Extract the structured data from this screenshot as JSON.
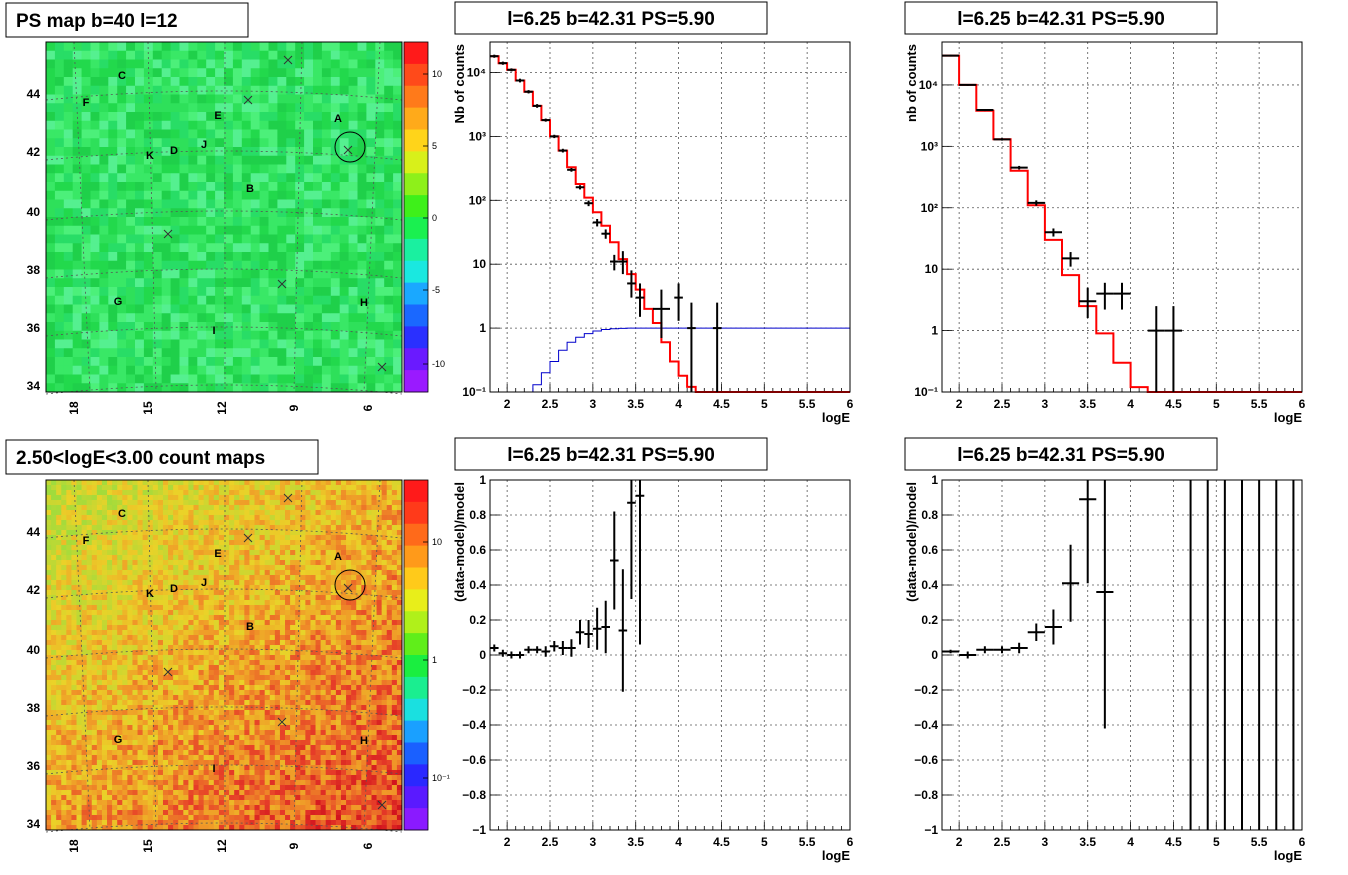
{
  "colors": {
    "model_line": "#ff0000",
    "background_line": "#0000cc",
    "data_marker": "#000000"
  },
  "panels": [
    {
      "id": "ps-map",
      "type": "heatmap",
      "title": "PS map b=40 l=12",
      "x_ticks": [
        "18",
        "15",
        "12",
        "9",
        "6"
      ],
      "y_ticks": [
        "34",
        "36",
        "38",
        "40",
        "42",
        "44"
      ],
      "colorbar_ticks": [
        "10",
        "5",
        "0",
        "-5",
        "-10"
      ],
      "source_labels": [
        "A",
        "B",
        "C",
        "D",
        "E",
        "F",
        "G",
        "H",
        "I",
        "J",
        "K"
      ],
      "palette": "green"
    },
    {
      "id": "count-map",
      "type": "heatmap",
      "title": "2.50<logE<3.00 count maps",
      "x_ticks": [
        "18",
        "15",
        "12",
        "9",
        "6"
      ],
      "y_ticks": [
        "34",
        "36",
        "38",
        "40",
        "42",
        "44"
      ],
      "colorbar_ticks": [
        "10",
        "1",
        "10⁻¹"
      ],
      "source_labels": [
        "A",
        "B",
        "C",
        "D",
        "E",
        "F",
        "G",
        "H",
        "I",
        "J",
        "K"
      ],
      "palette": "heat"
    }
  ],
  "chart_data": [
    {
      "type": "line",
      "title": "l=6.25 b=42.31 PS=5.90",
      "xlabel": "logE",
      "ylabel": "Nb of counts",
      "xlim": [
        1.8,
        6
      ],
      "ylim": [
        0.1,
        30000
      ],
      "yscale": "log",
      "x_ticks": [
        "2",
        "2.5",
        "3",
        "3.5",
        "4",
        "4.5",
        "5",
        "5.5",
        "6"
      ],
      "y_ticks": [
        "10⁻¹",
        "1",
        "10",
        "10²",
        "10³",
        "10⁴"
      ],
      "grid": true,
      "model_step": {
        "edges": [
          1.8,
          1.9,
          2.0,
          2.1,
          2.2,
          2.3,
          2.4,
          2.5,
          2.6,
          2.7,
          2.8,
          2.9,
          3.0,
          3.1,
          3.2,
          3.3,
          3.4,
          3.5,
          3.6,
          3.7,
          3.8,
          3.9,
          4.0,
          4.1,
          4.2,
          6.0
        ],
        "values": [
          18000,
          14000,
          11000,
          7500,
          5000,
          3000,
          1800,
          1000,
          600,
          330,
          180,
          110,
          65,
          40,
          22,
          12,
          7,
          4,
          2,
          1.2,
          0.6,
          0.3,
          0.18,
          0.12,
          0.1
        ]
      },
      "background_step": {
        "edges": [
          1.8,
          2.3,
          2.4,
          2.5,
          2.6,
          2.7,
          2.8,
          2.9,
          3.0,
          3.1,
          3.2,
          3.3,
          3.4,
          6.0
        ],
        "values": [
          0.1,
          0.13,
          0.2,
          0.3,
          0.45,
          0.6,
          0.72,
          0.82,
          0.9,
          0.95,
          0.98,
          0.99,
          1.0
        ]
      },
      "points": [
        {
          "x": 1.85,
          "y": 18000,
          "xerr": 0.05,
          "ylo": 17000,
          "yhi": 19000
        },
        {
          "x": 1.95,
          "y": 14000,
          "xerr": 0.05,
          "ylo": 13200,
          "yhi": 14800
        },
        {
          "x": 2.05,
          "y": 11000,
          "xerr": 0.05,
          "ylo": 10400,
          "yhi": 11600
        },
        {
          "x": 2.15,
          "y": 7500,
          "xerr": 0.05,
          "ylo": 7000,
          "yhi": 8000
        },
        {
          "x": 2.25,
          "y": 5000,
          "xerr": 0.05,
          "ylo": 4700,
          "yhi": 5300
        },
        {
          "x": 2.35,
          "y": 3000,
          "xerr": 0.05,
          "ylo": 2800,
          "yhi": 3200
        },
        {
          "x": 2.45,
          "y": 1800,
          "xerr": 0.05,
          "ylo": 1700,
          "yhi": 1900
        },
        {
          "x": 2.55,
          "y": 1000,
          "xerr": 0.05,
          "ylo": 940,
          "yhi": 1060
        },
        {
          "x": 2.65,
          "y": 600,
          "xerr": 0.05,
          "ylo": 560,
          "yhi": 640
        },
        {
          "x": 2.75,
          "y": 300,
          "xerr": 0.05,
          "ylo": 280,
          "yhi": 320
        },
        {
          "x": 2.85,
          "y": 160,
          "xerr": 0.05,
          "ylo": 148,
          "yhi": 172
        },
        {
          "x": 2.95,
          "y": 90,
          "xerr": 0.05,
          "ylo": 81,
          "yhi": 99
        },
        {
          "x": 3.05,
          "y": 45,
          "xerr": 0.05,
          "ylo": 39,
          "yhi": 51
        },
        {
          "x": 3.15,
          "y": 30,
          "xerr": 0.05,
          "ylo": 25,
          "yhi": 35
        },
        {
          "x": 3.25,
          "y": 11,
          "xerr": 0.05,
          "ylo": 8,
          "yhi": 14
        },
        {
          "x": 3.35,
          "y": 11,
          "xerr": 0.05,
          "ylo": 7,
          "yhi": 16
        },
        {
          "x": 3.45,
          "y": 5,
          "xerr": 0.05,
          "ylo": 3,
          "yhi": 8
        },
        {
          "x": 3.55,
          "y": 3,
          "xerr": 0.05,
          "ylo": 1.5,
          "yhi": 5
        },
        {
          "x": 3.8,
          "y": 2,
          "xerr": 0.1,
          "ylo": 0.7,
          "yhi": 4
        },
        {
          "x": 4.0,
          "y": 3,
          "xerr": 0.05,
          "ylo": 1.3,
          "yhi": 5
        },
        {
          "x": 4.15,
          "y": 1,
          "xerr": 0.05,
          "ylo": 0.1,
          "yhi": 2.5
        },
        {
          "x": 4.45,
          "y": 1,
          "xerr": 0.05,
          "ylo": 0.1,
          "yhi": 2.5
        }
      ]
    },
    {
      "type": "line",
      "title": "l=6.25 b=42.31 PS=5.90",
      "xlabel": "logE",
      "ylabel": "nb of counts",
      "xlim": [
        1.8,
        6
      ],
      "ylim": [
        0.1,
        50000
      ],
      "yscale": "log",
      "x_ticks": [
        "2",
        "2.5",
        "3",
        "3.5",
        "4",
        "4.5",
        "5",
        "5.5",
        "6"
      ],
      "y_ticks": [
        "10⁻¹",
        "1",
        "10",
        "10²",
        "10³",
        "10⁴"
      ],
      "grid": true,
      "model_step": {
        "edges": [
          1.8,
          2.0,
          2.2,
          2.4,
          2.6,
          2.8,
          3.0,
          3.2,
          3.4,
          3.6,
          3.8,
          4.0,
          4.2,
          4.4,
          6.0
        ],
        "values": [
          30000,
          10000,
          3800,
          1300,
          400,
          110,
          30,
          8,
          2.5,
          0.9,
          0.3,
          0.12,
          0.1,
          0.1
        ]
      },
      "points": [
        {
          "x": 1.9,
          "y": 30000,
          "xerr": 0.1,
          "ylo": 29000,
          "yhi": 31000
        },
        {
          "x": 2.1,
          "y": 10000,
          "xerr": 0.1,
          "ylo": 9700,
          "yhi": 10300
        },
        {
          "x": 2.3,
          "y": 3900,
          "xerr": 0.1,
          "ylo": 3750,
          "yhi": 4050
        },
        {
          "x": 2.5,
          "y": 1300,
          "xerr": 0.1,
          "ylo": 1240,
          "yhi": 1360
        },
        {
          "x": 2.7,
          "y": 450,
          "xerr": 0.1,
          "ylo": 420,
          "yhi": 480
        },
        {
          "x": 2.9,
          "y": 120,
          "xerr": 0.1,
          "ylo": 108,
          "yhi": 132
        },
        {
          "x": 3.1,
          "y": 40,
          "xerr": 0.1,
          "ylo": 34,
          "yhi": 46
        },
        {
          "x": 3.3,
          "y": 15,
          "xerr": 0.1,
          "ylo": 11,
          "yhi": 19
        },
        {
          "x": 3.5,
          "y": 3,
          "xerr": 0.1,
          "ylo": 1.6,
          "yhi": 5
        },
        {
          "x": 3.7,
          "y": 4,
          "xerr": 0.1,
          "ylo": 2.2,
          "yhi": 6
        },
        {
          "x": 3.9,
          "y": 4,
          "xerr": 0.1,
          "ylo": 2.2,
          "yhi": 6
        },
        {
          "x": 4.3,
          "y": 1,
          "xerr": 0.1,
          "ylo": 0.1,
          "yhi": 2.5
        },
        {
          "x": 4.5,
          "y": 1,
          "xerr": 0.1,
          "ylo": 0.1,
          "yhi": 2.5
        }
      ]
    },
    {
      "type": "scatter",
      "title": "l=6.25 b=42.31 PS=5.90",
      "xlabel": "logE",
      "ylabel": "(data-model)/model",
      "xlim": [
        1.8,
        6
      ],
      "ylim": [
        -1,
        1
      ],
      "x_ticks": [
        "2",
        "2.5",
        "3",
        "3.5",
        "4",
        "4.5",
        "5",
        "5.5",
        "6"
      ],
      "y_ticks": [
        "−1",
        "−0.8",
        "−0.6",
        "−0.4",
        "−0.2",
        "0",
        "0.2",
        "0.4",
        "0.6",
        "0.8",
        "1"
      ],
      "grid": true,
      "points": [
        {
          "x": 1.85,
          "y": 0.04,
          "xerr": 0.05,
          "err": 0.02
        },
        {
          "x": 1.95,
          "y": 0.01,
          "xerr": 0.05,
          "err": 0.02
        },
        {
          "x": 2.05,
          "y": 0.0,
          "xerr": 0.05,
          "err": 0.02
        },
        {
          "x": 2.15,
          "y": 0.0,
          "xerr": 0.05,
          "err": 0.02
        },
        {
          "x": 2.25,
          "y": 0.03,
          "xerr": 0.05,
          "err": 0.02
        },
        {
          "x": 2.35,
          "y": 0.03,
          "xerr": 0.05,
          "err": 0.02
        },
        {
          "x": 2.45,
          "y": 0.02,
          "xerr": 0.05,
          "err": 0.03
        },
        {
          "x": 2.55,
          "y": 0.05,
          "xerr": 0.05,
          "err": 0.03
        },
        {
          "x": 2.65,
          "y": 0.04,
          "xerr": 0.05,
          "err": 0.04
        },
        {
          "x": 2.75,
          "y": 0.04,
          "xerr": 0.05,
          "err": 0.05
        },
        {
          "x": 2.85,
          "y": 0.13,
          "xerr": 0.05,
          "err": 0.07
        },
        {
          "x": 2.95,
          "y": 0.12,
          "xerr": 0.05,
          "err": 0.08
        },
        {
          "x": 3.05,
          "y": 0.15,
          "xerr": 0.05,
          "err": 0.12
        },
        {
          "x": 3.15,
          "y": 0.16,
          "xerr": 0.05,
          "err": 0.15
        },
        {
          "x": 3.25,
          "y": 0.54,
          "xerr": 0.05,
          "err": 0.28
        },
        {
          "x": 3.35,
          "y": 0.14,
          "xerr": 0.05,
          "err": 0.35
        },
        {
          "x": 3.45,
          "y": 0.87,
          "xerr": 0.05,
          "err": 0.55
        },
        {
          "x": 3.55,
          "y": 0.91,
          "xerr": 0.05,
          "err": 0.85
        }
      ]
    },
    {
      "type": "scatter",
      "title": "l=6.25 b=42.31 PS=5.90",
      "xlabel": "logE",
      "ylabel": "(data-model)/model",
      "xlim": [
        1.8,
        6
      ],
      "ylim": [
        -1,
        1
      ],
      "x_ticks": [
        "2",
        "2.5",
        "3",
        "3.5",
        "4",
        "4.5",
        "5",
        "5.5",
        "6"
      ],
      "y_ticks": [
        "−1",
        "−0.8",
        "−0.6",
        "−0.4",
        "−0.2",
        "0",
        "0.2",
        "0.4",
        "0.6",
        "0.8",
        "1"
      ],
      "grid": true,
      "points": [
        {
          "x": 1.9,
          "y": 0.02,
          "xerr": 0.1,
          "err": 0.01
        },
        {
          "x": 2.1,
          "y": 0.0,
          "xerr": 0.1,
          "err": 0.02
        },
        {
          "x": 2.3,
          "y": 0.03,
          "xerr": 0.1,
          "err": 0.02
        },
        {
          "x": 2.5,
          "y": 0.03,
          "xerr": 0.1,
          "err": 0.02
        },
        {
          "x": 2.7,
          "y": 0.04,
          "xerr": 0.1,
          "err": 0.03
        },
        {
          "x": 2.9,
          "y": 0.13,
          "xerr": 0.1,
          "err": 0.05
        },
        {
          "x": 3.1,
          "y": 0.16,
          "xerr": 0.1,
          "err": 0.1
        },
        {
          "x": 3.3,
          "y": 0.41,
          "xerr": 0.1,
          "err": 0.22
        },
        {
          "x": 3.5,
          "y": 0.89,
          "xerr": 0.1,
          "err": 0.48
        },
        {
          "x": 3.7,
          "y": 0.36,
          "xerr": 0.1,
          "err": 0.78
        },
        {
          "x": 4.7,
          "y": 1.0,
          "xerr": 0.0,
          "err": 2.0
        },
        {
          "x": 4.9,
          "y": 1.0,
          "xerr": 0.0,
          "err": 2.0
        },
        {
          "x": 5.1,
          "y": 1.0,
          "xerr": 0.0,
          "err": 2.0
        },
        {
          "x": 5.3,
          "y": 1.0,
          "xerr": 0.0,
          "err": 2.0
        },
        {
          "x": 5.5,
          "y": 1.0,
          "xerr": 0.0,
          "err": 2.0
        },
        {
          "x": 5.7,
          "y": 1.0,
          "xerr": 0.0,
          "err": 2.0
        },
        {
          "x": 5.9,
          "y": 1.0,
          "xerr": 0.0,
          "err": 2.0
        }
      ]
    }
  ]
}
